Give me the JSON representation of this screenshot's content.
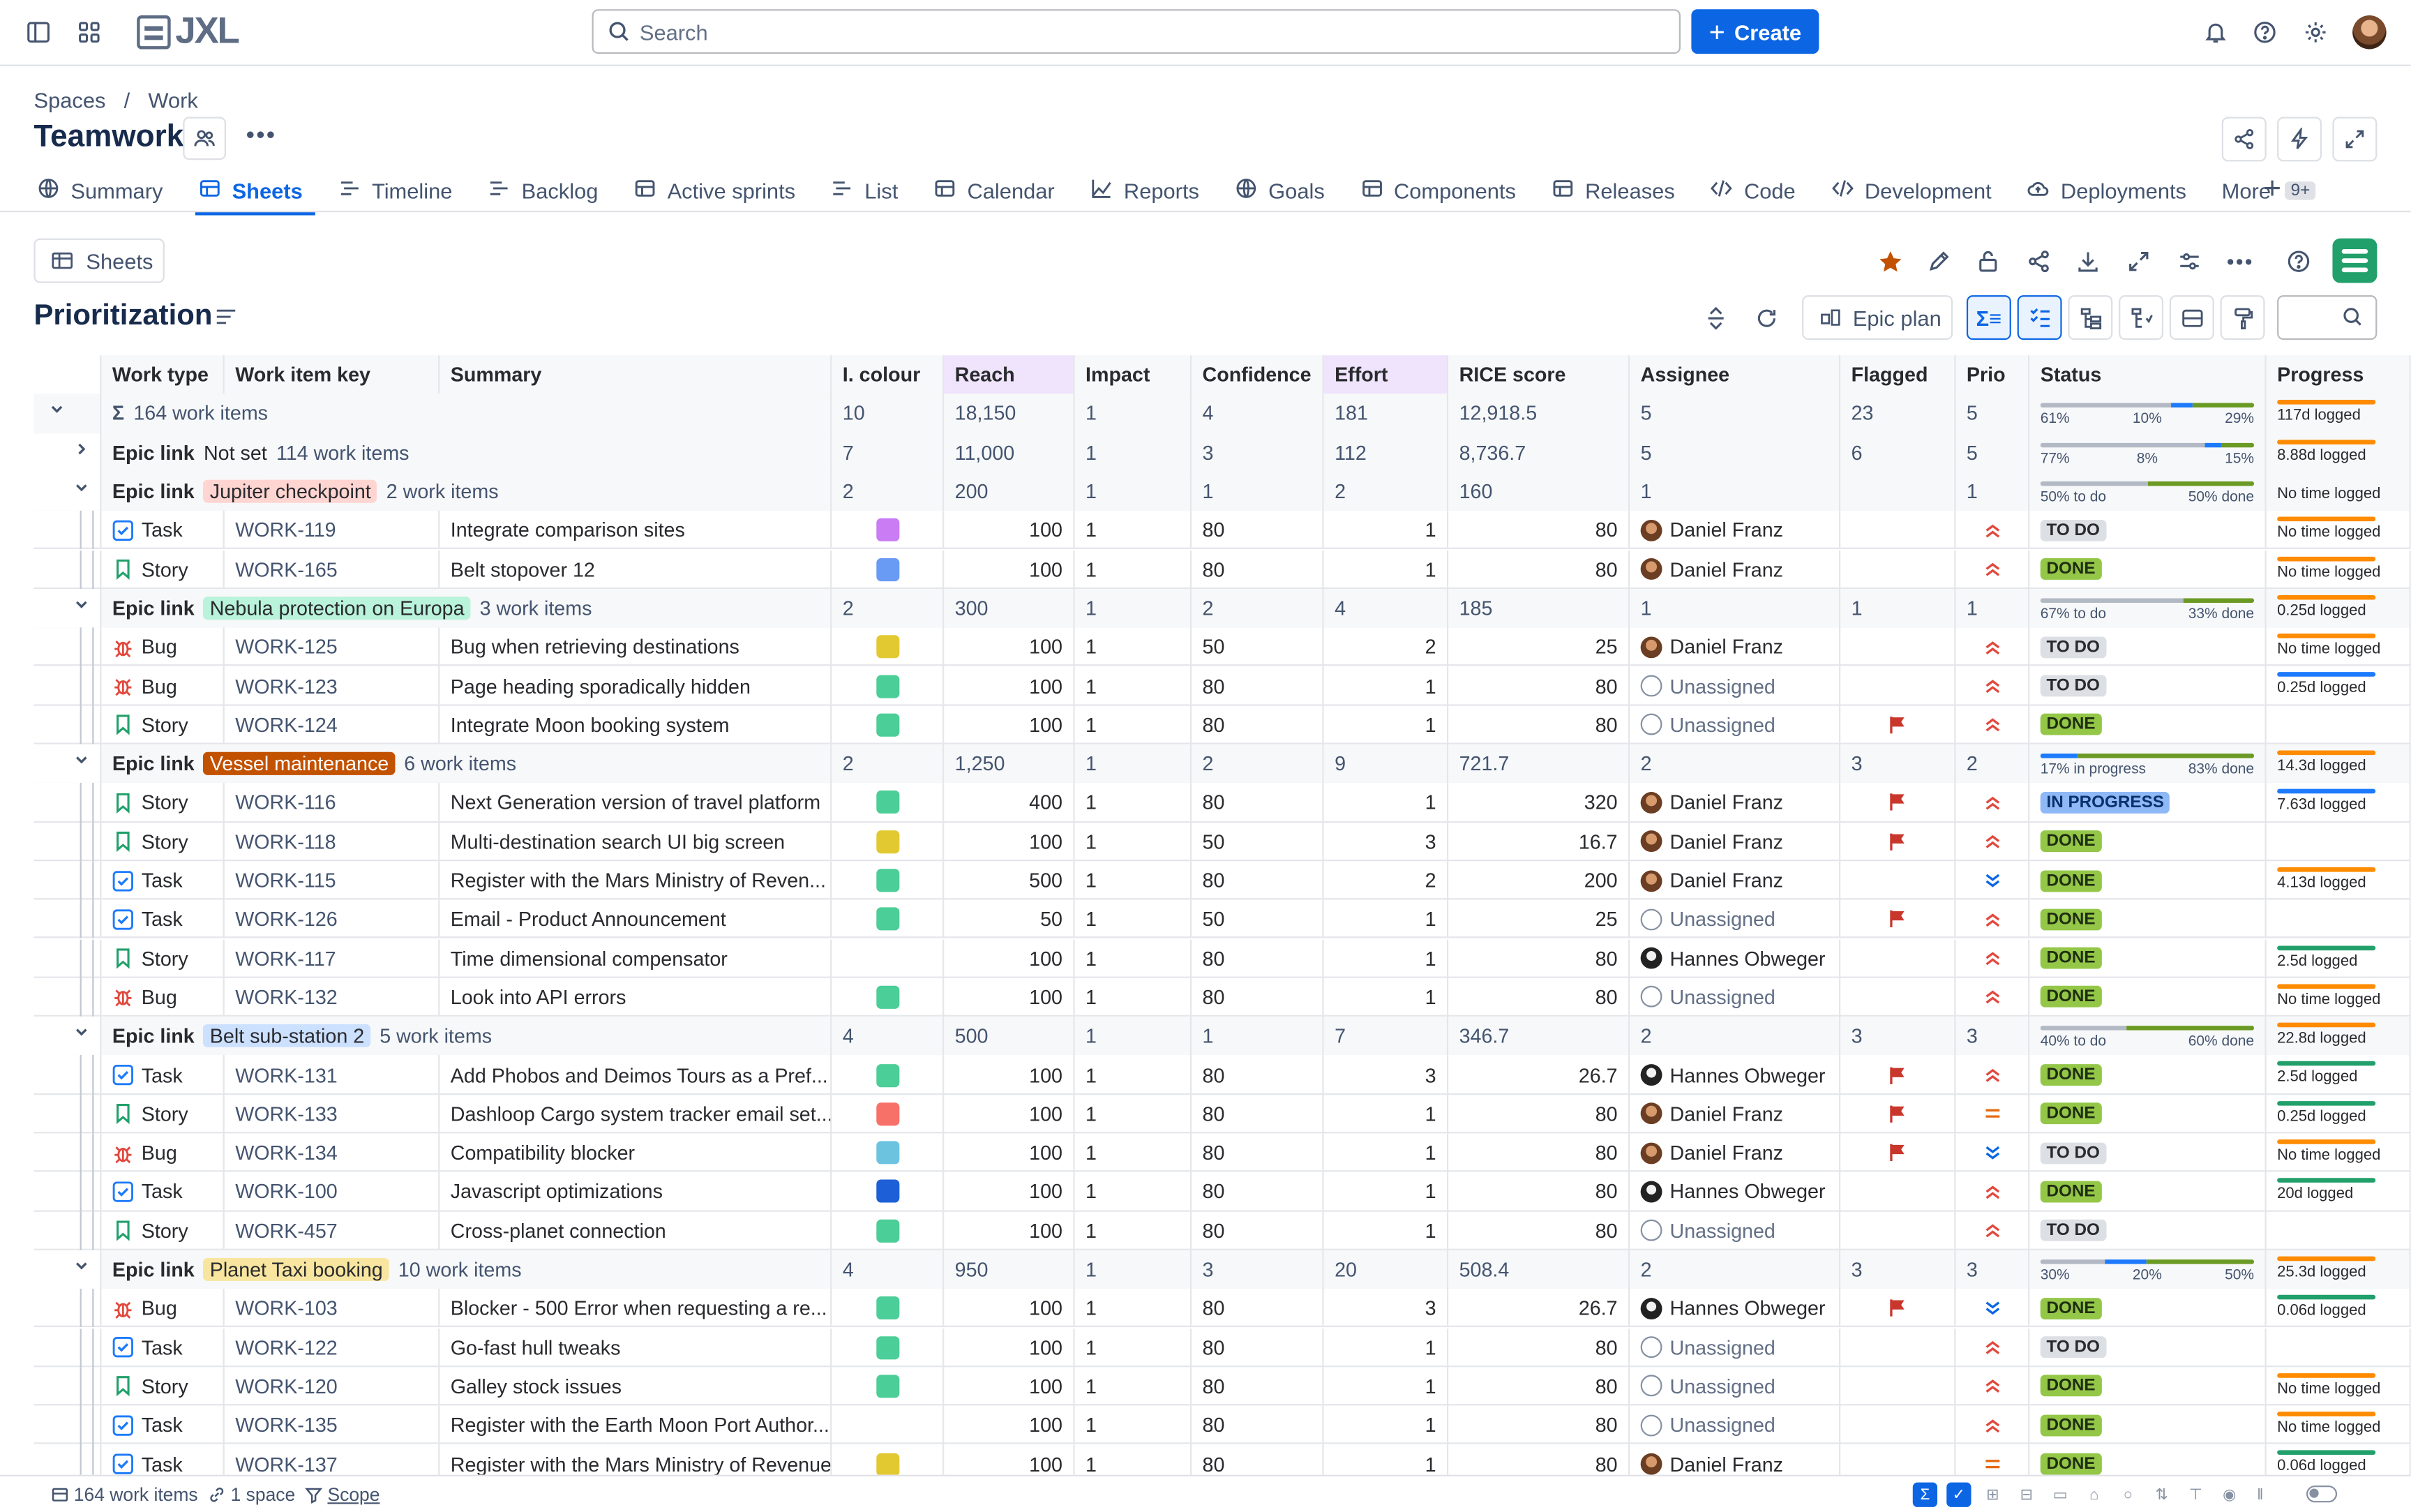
{
  "app": {
    "logo_text": "JXL",
    "search_placeholder": "Search",
    "create_label": "Create"
  },
  "breadcrumb": {
    "items": [
      "Spaces",
      "/",
      "Work"
    ]
  },
  "page": {
    "title": "Teamwork"
  },
  "tabs": [
    {
      "label": "Summary",
      "icon": "globe-icon"
    },
    {
      "label": "Sheets",
      "icon": "sheet-icon",
      "active": true
    },
    {
      "label": "Timeline",
      "icon": "timeline-icon"
    },
    {
      "label": "Backlog",
      "icon": "backlog-icon"
    },
    {
      "label": "Active sprints",
      "icon": "board-icon"
    },
    {
      "label": "List",
      "icon": "list-icon"
    },
    {
      "label": "Calendar",
      "icon": "calendar-icon"
    },
    {
      "label": "Reports",
      "icon": "chart-icon"
    },
    {
      "label": "Goals",
      "icon": "target-icon"
    },
    {
      "label": "Components",
      "icon": "component-icon"
    },
    {
      "label": "Releases",
      "icon": "ship-icon"
    },
    {
      "label": "Code",
      "icon": "code-icon"
    },
    {
      "label": "Development",
      "icon": "code-icon"
    },
    {
      "label": "Deployments",
      "icon": "cloud-icon"
    },
    {
      "label": "More",
      "icon": "",
      "badge": "9+"
    }
  ],
  "sheet": {
    "button_label": "Sheets",
    "title": "Prioritization",
    "epic_plan_label": "Epic plan"
  },
  "columns": [
    "Work type",
    "Work item key",
    "Summary",
    "I. colour",
    "Reach",
    "Impact",
    "Confidence",
    "Effort",
    "RICE score",
    "Assignee",
    "Flagged",
    "Prio",
    "Status",
    "Progress"
  ],
  "total_row": {
    "label": "164 work items",
    "colour": "10",
    "reach": "18,150",
    "impact": "1",
    "confidence": "4",
    "effort": "181",
    "rice": "12,918.5",
    "assignee": "5",
    "flagged": "23",
    "prio": "5",
    "status": {
      "segments": [
        61,
        10,
        29
      ],
      "labels": [
        "61%",
        "10%",
        "29%"
      ]
    },
    "progress": "117d logged"
  },
  "groups": [
    {
      "label": "Not set",
      "lozenge_color": "",
      "count": "114 work items",
      "collapsed": true,
      "colour": "7",
      "reach": "11,000",
      "impact": "1",
      "confidence": "3",
      "effort": "112",
      "rice": "8,736.7",
      "assignee": "5",
      "flagged": "6",
      "prio": "5",
      "status": {
        "segments": [
          77,
          8,
          15
        ],
        "labels": [
          "77%",
          "8%",
          "15%"
        ]
      },
      "progress": "8.88d logged",
      "items": []
    },
    {
      "label": "Jupiter checkpoint",
      "lozenge_color": "#ffd5d2",
      "count": "2 work items",
      "colour": "2",
      "reach": "200",
      "impact": "1",
      "confidence": "1",
      "effort": "2",
      "rice": "160",
      "assignee": "1",
      "flagged": "",
      "prio": "1",
      "status": {
        "segments": [
          50,
          0,
          50
        ],
        "labels": [
          "50% to do",
          "50% done"
        ]
      },
      "progress": "No time logged",
      "items": [
        {
          "type": "Task",
          "key": "WORK-119",
          "summary": "Integrate comparison sites",
          "colour": "#c97cf4",
          "reach": "100",
          "impact": "1",
          "confidence": "80",
          "effort": "1",
          "rice": "80",
          "assignee": "Daniel Franz",
          "av": "df",
          "flag": false,
          "prio": "high",
          "status": "TO DO",
          "progress": "No time logged",
          "pbar": true
        },
        {
          "type": "Story",
          "key": "WORK-165",
          "summary": "Belt stopover 12",
          "colour": "#6a9bf4",
          "reach": "100",
          "impact": "1",
          "confidence": "80",
          "effort": "1",
          "rice": "80",
          "assignee": "Daniel Franz",
          "av": "df",
          "flag": false,
          "prio": "high",
          "status": "DONE",
          "progress": "No time logged",
          "pbar": true
        }
      ]
    },
    {
      "label": "Nebula protection on Europa",
      "lozenge_color": "#baf3db",
      "count": "3 work items",
      "colour": "2",
      "reach": "300",
      "impact": "1",
      "confidence": "2",
      "effort": "4",
      "rice": "185",
      "assignee": "1",
      "flagged": "1",
      "prio": "1",
      "status": {
        "segments": [
          67,
          0,
          33
        ],
        "labels": [
          "67% to do",
          "33% done"
        ]
      },
      "progress": "0.25d logged",
      "items": [
        {
          "type": "Bug",
          "key": "WORK-125",
          "summary": "Bug when retrieving destinations",
          "colour": "#e2c932",
          "reach": "100",
          "impact": "1",
          "confidence": "50",
          "effort": "2",
          "rice": "25",
          "assignee": "Daniel Franz",
          "av": "df",
          "flag": false,
          "prio": "high",
          "status": "TO DO",
          "progress": "No time logged",
          "pbar": true
        },
        {
          "type": "Bug",
          "key": "WORK-123",
          "summary": "Page heading sporadically hidden",
          "colour": "#4bce97",
          "reach": "100",
          "impact": "1",
          "confidence": "80",
          "effort": "1",
          "rice": "80",
          "assignee": "Unassigned",
          "av": "un",
          "flag": false,
          "prio": "high",
          "status": "TO DO",
          "progress": "0.25d logged",
          "pbar": true,
          "pblue": true
        },
        {
          "type": "Story",
          "key": "WORK-124",
          "summary": "Integrate Moon booking system",
          "colour": "#4bce97",
          "reach": "100",
          "impact": "1",
          "confidence": "80",
          "effort": "1",
          "rice": "80",
          "assignee": "Unassigned",
          "av": "un",
          "flag": true,
          "prio": "high",
          "status": "DONE",
          "progress": "",
          "pbar": false
        }
      ]
    },
    {
      "label": "Vessel maintenance",
      "lozenge_color": "#c25100",
      "lozenge_text": "#ffffff",
      "count": "6 work items",
      "colour": "2",
      "reach": "1,250",
      "impact": "1",
      "confidence": "2",
      "effort": "9",
      "rice": "721.7",
      "assignee": "2",
      "flagged": "3",
      "prio": "2",
      "status": {
        "segments": [
          0,
          17,
          83
        ],
        "labels": [
          "17% in progress",
          "83% done"
        ]
      },
      "progress": "14.3d logged",
      "items": [
        {
          "type": "Story",
          "key": "WORK-116",
          "summary": "Next Generation version of travel platform",
          "colour": "#4bce97",
          "reach": "400",
          "impact": "1",
          "confidence": "80",
          "effort": "1",
          "rice": "320",
          "assignee": "Daniel Franz",
          "av": "df",
          "flag": true,
          "prio": "high",
          "status": "IN PROGRESS",
          "progress": "7.63d logged",
          "pbar": true,
          "pblue": true
        },
        {
          "type": "Story",
          "key": "WORK-118",
          "summary": "Multi-destination search UI big screen",
          "colour": "#e2c932",
          "reach": "100",
          "impact": "1",
          "confidence": "50",
          "effort": "3",
          "rice": "16.7",
          "assignee": "Daniel Franz",
          "av": "df",
          "flag": true,
          "prio": "high",
          "status": "DONE",
          "progress": "",
          "pbar": false
        },
        {
          "type": "Task",
          "key": "WORK-115",
          "summary": "Register with the Mars Ministry of Reven...",
          "colour": "#4bce97",
          "reach": "500",
          "impact": "1",
          "confidence": "80",
          "effort": "2",
          "rice": "200",
          "assignee": "Daniel Franz",
          "av": "df",
          "flag": false,
          "prio": "low",
          "status": "DONE",
          "progress": "4.13d logged",
          "pbar": true
        },
        {
          "type": "Task",
          "key": "WORK-126",
          "summary": "Email - Product Announcement",
          "colour": "#4bce97",
          "reach": "50",
          "impact": "1",
          "confidence": "50",
          "effort": "1",
          "rice": "25",
          "assignee": "Unassigned",
          "av": "un",
          "flag": true,
          "prio": "high",
          "status": "DONE",
          "progress": "",
          "pbar": false
        },
        {
          "type": "Story",
          "key": "WORK-117",
          "summary": "Time dimensional compensator",
          "colour": "",
          "reach": "100",
          "impact": "1",
          "confidence": "80",
          "effort": "1",
          "rice": "80",
          "assignee": "Hannes Obweger",
          "av": "ho",
          "flag": false,
          "prio": "high",
          "status": "DONE",
          "progress": "2.5d logged",
          "pbar": true,
          "pgreen": true
        },
        {
          "type": "Bug",
          "key": "WORK-132",
          "summary": "Look into API errors",
          "colour": "#4bce97",
          "reach": "100",
          "impact": "1",
          "confidence": "80",
          "effort": "1",
          "rice": "80",
          "assignee": "Unassigned",
          "av": "un",
          "flag": false,
          "prio": "high",
          "status": "DONE",
          "progress": "No time logged",
          "pbar": true
        }
      ]
    },
    {
      "label": "Belt sub-station 2",
      "lozenge_color": "#cce0ff",
      "count": "5 work items",
      "colour": "4",
      "reach": "500",
      "impact": "1",
      "confidence": "1",
      "effort": "7",
      "rice": "346.7",
      "assignee": "2",
      "flagged": "3",
      "prio": "3",
      "status": {
        "segments": [
          40,
          0,
          60
        ],
        "labels": [
          "40% to do",
          "60% done"
        ]
      },
      "progress": "22.8d logged",
      "items": [
        {
          "type": "Task",
          "key": "WORK-131",
          "summary": "Add Phobos and Deimos Tours as a Pref...",
          "colour": "#4bce97",
          "reach": "100",
          "impact": "1",
          "confidence": "80",
          "effort": "3",
          "rice": "26.7",
          "assignee": "Hannes Obweger",
          "av": "ho",
          "flag": true,
          "prio": "high",
          "status": "DONE",
          "progress": "2.5d logged",
          "pbar": true,
          "pgreen": true
        },
        {
          "type": "Story",
          "key": "WORK-133",
          "summary": "Dashloop Cargo system tracker email set...",
          "colour": "#f87168",
          "reach": "100",
          "impact": "1",
          "confidence": "80",
          "effort": "1",
          "rice": "80",
          "assignee": "Daniel Franz",
          "av": "df",
          "flag": true,
          "prio": "medium",
          "status": "DONE",
          "progress": "0.25d logged",
          "pbar": true,
          "pgreen": true
        },
        {
          "type": "Bug",
          "key": "WORK-134",
          "summary": "Compatibility blocker",
          "colour": "#6cc3e0",
          "reach": "100",
          "impact": "1",
          "confidence": "80",
          "effort": "1",
          "rice": "80",
          "assignee": "Daniel Franz",
          "av": "df",
          "flag": true,
          "prio": "low",
          "status": "TO DO",
          "progress": "No time logged",
          "pbar": true
        },
        {
          "type": "Task",
          "key": "WORK-100",
          "summary": "Javascript optimizations",
          "colour": "#1d5fd6",
          "reach": "100",
          "impact": "1",
          "confidence": "80",
          "effort": "1",
          "rice": "80",
          "assignee": "Hannes Obweger",
          "av": "ho",
          "flag": false,
          "prio": "high",
          "status": "DONE",
          "progress": "20d logged",
          "pbar": true,
          "pgreen": true
        },
        {
          "type": "Story",
          "key": "WORK-457",
          "summary": "Cross-planet connection",
          "colour": "#4bce97",
          "reach": "100",
          "impact": "1",
          "confidence": "80",
          "effort": "1",
          "rice": "80",
          "assignee": "Unassigned",
          "av": "un",
          "flag": false,
          "prio": "high",
          "status": "TO DO",
          "progress": "",
          "pbar": false
        }
      ]
    },
    {
      "label": "Planet Taxi booking",
      "lozenge_color": "#f8e6a0",
      "count": "10 work items",
      "colour": "4",
      "reach": "950",
      "impact": "1",
      "confidence": "3",
      "effort": "20",
      "rice": "508.4",
      "assignee": "2",
      "flagged": "3",
      "prio": "3",
      "status": {
        "segments": [
          30,
          20,
          50
        ],
        "labels": [
          "30%",
          "20%",
          "50%"
        ]
      },
      "progress": "25.3d logged",
      "items": [
        {
          "type": "Bug",
          "key": "WORK-103",
          "summary": "Blocker - 500 Error when requesting a re...",
          "colour": "#4bce97",
          "reach": "100",
          "impact": "1",
          "confidence": "80",
          "effort": "3",
          "rice": "26.7",
          "assignee": "Hannes Obweger",
          "av": "ho",
          "flag": true,
          "prio": "low",
          "status": "DONE",
          "progress": "0.06d logged",
          "pbar": true,
          "pgreen": true
        },
        {
          "type": "Task",
          "key": "WORK-122",
          "summary": "Go-fast hull tweaks",
          "colour": "#4bce97",
          "reach": "100",
          "impact": "1",
          "confidence": "80",
          "effort": "1",
          "rice": "80",
          "assignee": "Unassigned",
          "av": "un",
          "flag": false,
          "prio": "high",
          "status": "TO DO",
          "progress": "",
          "pbar": false
        },
        {
          "type": "Story",
          "key": "WORK-120",
          "summary": "Galley stock issues",
          "colour": "#4bce97",
          "reach": "100",
          "impact": "1",
          "confidence": "80",
          "effort": "1",
          "rice": "80",
          "assignee": "Unassigned",
          "av": "un",
          "flag": false,
          "prio": "high",
          "status": "DONE",
          "progress": "No time logged",
          "pbar": true
        },
        {
          "type": "Task",
          "key": "WORK-135",
          "summary": "Register with the Earth Moon Port Author...",
          "colour": "",
          "reach": "100",
          "impact": "1",
          "confidence": "80",
          "effort": "1",
          "rice": "80",
          "assignee": "Unassigned",
          "av": "un",
          "flag": false,
          "prio": "high",
          "status": "DONE",
          "progress": "No time logged",
          "pbar": true
        },
        {
          "type": "Task",
          "key": "WORK-137",
          "summary": "Register with the Mars Ministry of Revenue",
          "colour": "#e2c932",
          "reach": "100",
          "impact": "1",
          "confidence": "80",
          "effort": "1",
          "rice": "80",
          "assignee": "Daniel Franz",
          "av": "df",
          "flag": false,
          "prio": "medium",
          "status": "DONE",
          "progress": "0.06d logged",
          "pbar": true,
          "pgreen": true
        }
      ]
    }
  ],
  "epic_link_label": "Epic link",
  "footer": {
    "items": "164 work items",
    "spaces": "1 space",
    "scope": "Scope"
  },
  "colors": {
    "accent": "#0c66e4",
    "todo": "#dcdfe4",
    "done": "#94c748",
    "in_progress": "#8fb8f6",
    "flag": "#c9372c",
    "prio_high": "#e2483d",
    "prio_medium": "#e56910",
    "prio_low": "#0c66e4"
  }
}
